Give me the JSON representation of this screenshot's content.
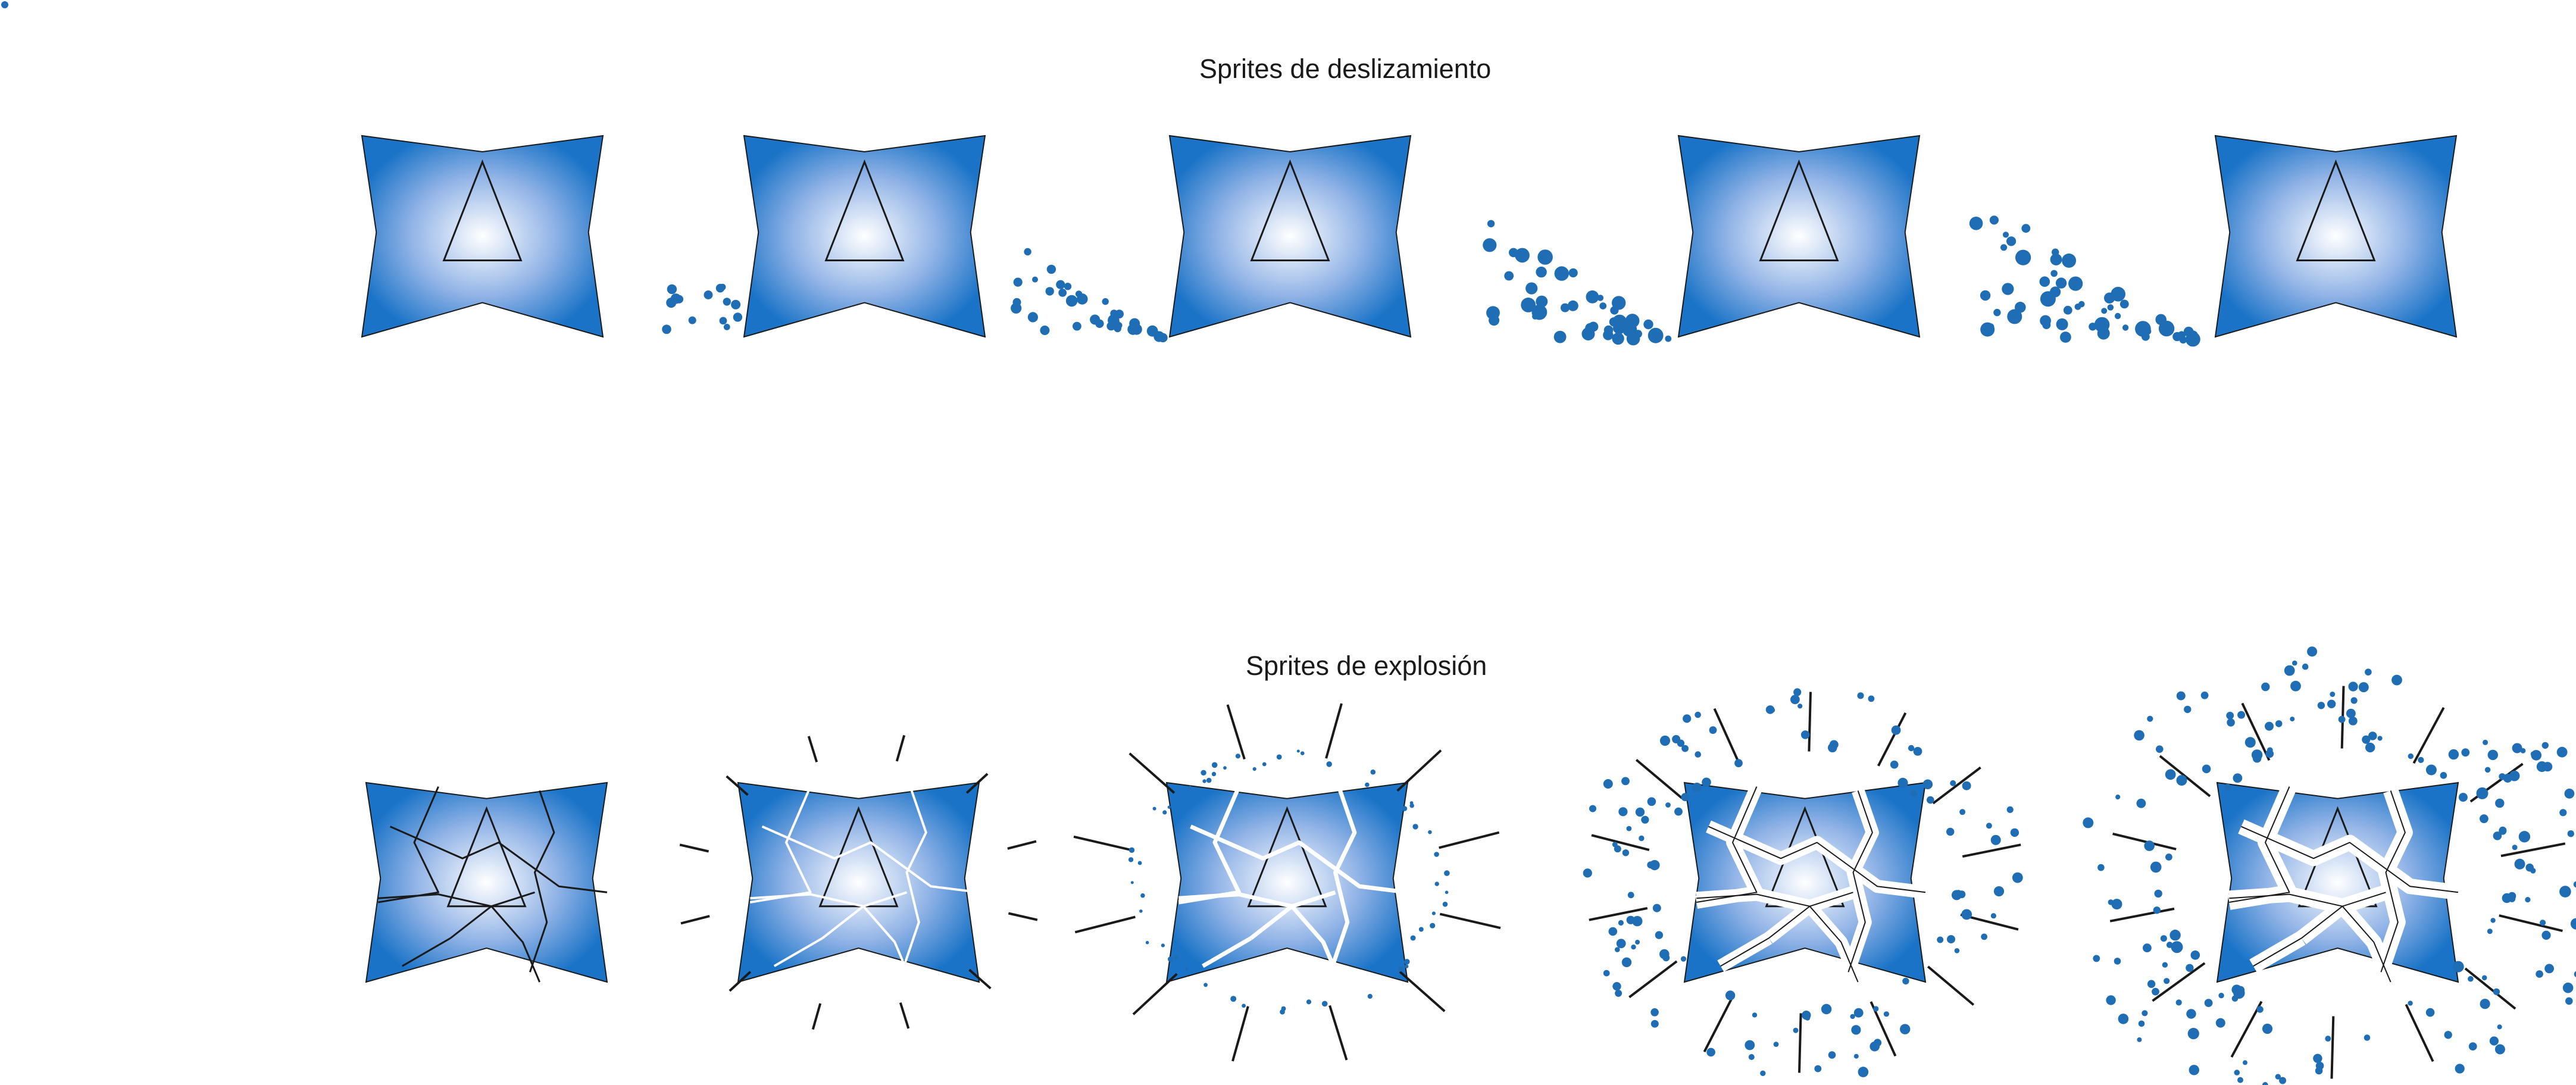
{
  "rows": {
    "slide": {
      "title": "Sprites de deslizamiento",
      "frame_count": 5
    },
    "explosion": {
      "title": "Sprites de explosión",
      "frame_count": 5
    }
  },
  "colors": {
    "sprite_light": "#ffffff",
    "sprite_mid": "#8fb2e6",
    "sprite_dark": "#1a73c7",
    "particle": "#1f6db5",
    "outline": "#1a1a1a",
    "crack_light": "#ffffff"
  },
  "icons": {
    "sprite": "cushion-sprite-with-triangle-icon",
    "particle": "dust-particle-icon",
    "shockwave": "blast-line-icon"
  }
}
